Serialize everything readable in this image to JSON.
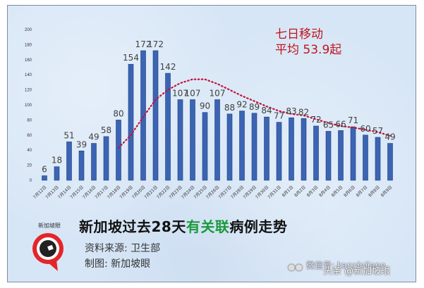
{
  "chart_data": {
    "type": "bar",
    "title": "新加坡过去28天有关联病例走势",
    "xlabel": "",
    "ylabel": "",
    "ylim": [
      0,
      200
    ],
    "yticks": [
      0,
      20,
      40,
      60,
      80,
      100,
      120,
      140,
      160,
      180,
      200
    ],
    "grid": false,
    "categories": [
      "7月12日",
      "7月13日",
      "7月14日",
      "7月15日",
      "7月16日",
      "7月17日",
      "7月18日",
      "7月19日",
      "7月20日",
      "7月21日",
      "7月22日",
      "7月23日",
      "7月24日",
      "7月25日",
      "7月26日",
      "7月27日",
      "7月28日",
      "7月29日",
      "7月30日",
      "7月31日",
      "8月1日",
      "8月2日",
      "8月3日",
      "8月4日",
      "8月5日",
      "8月6日",
      "8月7日",
      "8月8日",
      "8月9日"
    ],
    "series": [
      {
        "name": "有关联病例",
        "type": "bar",
        "color": "#3b64b4",
        "values": [
          6,
          18,
          51,
          39,
          49,
          58,
          80,
          154,
          172,
          172,
          142,
          107,
          107,
          90,
          107,
          88,
          92,
          89,
          84,
          77,
          83,
          82,
          72,
          65,
          66,
          71,
          60,
          57,
          49
        ]
      },
      {
        "name": "七日移动平均",
        "type": "line",
        "style": "dotted",
        "color": "#c0143c",
        "values": [
          null,
          null,
          null,
          null,
          null,
          null,
          43,
          60,
          84,
          107,
          120,
          129,
          134,
          134,
          128,
          120,
          112,
          105,
          98,
          92,
          88,
          86,
          81,
          76,
          72,
          70,
          67,
          64,
          59
        ]
      }
    ],
    "annotations": [
      "七日移动",
      "平均 53.9起"
    ]
  },
  "annotation": {
    "line1": "七日移动",
    "line2": "平均 53.9起"
  },
  "title": {
    "part1": "新加坡过去28天",
    "part2": "有关联",
    "part3": "病例走势"
  },
  "source": "资料来源:  卫生部",
  "credit": "制图:  新加坡眼",
  "logo": {
    "text": "新加坡眼",
    "icon": "eye-logo-icon"
  },
  "watermark": {
    "wechat": "微信号: kanxinjiapo",
    "toutiao": "头条 @新加坡眼",
    "icon": "wechat-icon"
  },
  "colors": {
    "bar": "#3b64b4",
    "trend": "#c0143c",
    "accent_green": "#1a9a3c",
    "annotation": "#c0141c"
  }
}
